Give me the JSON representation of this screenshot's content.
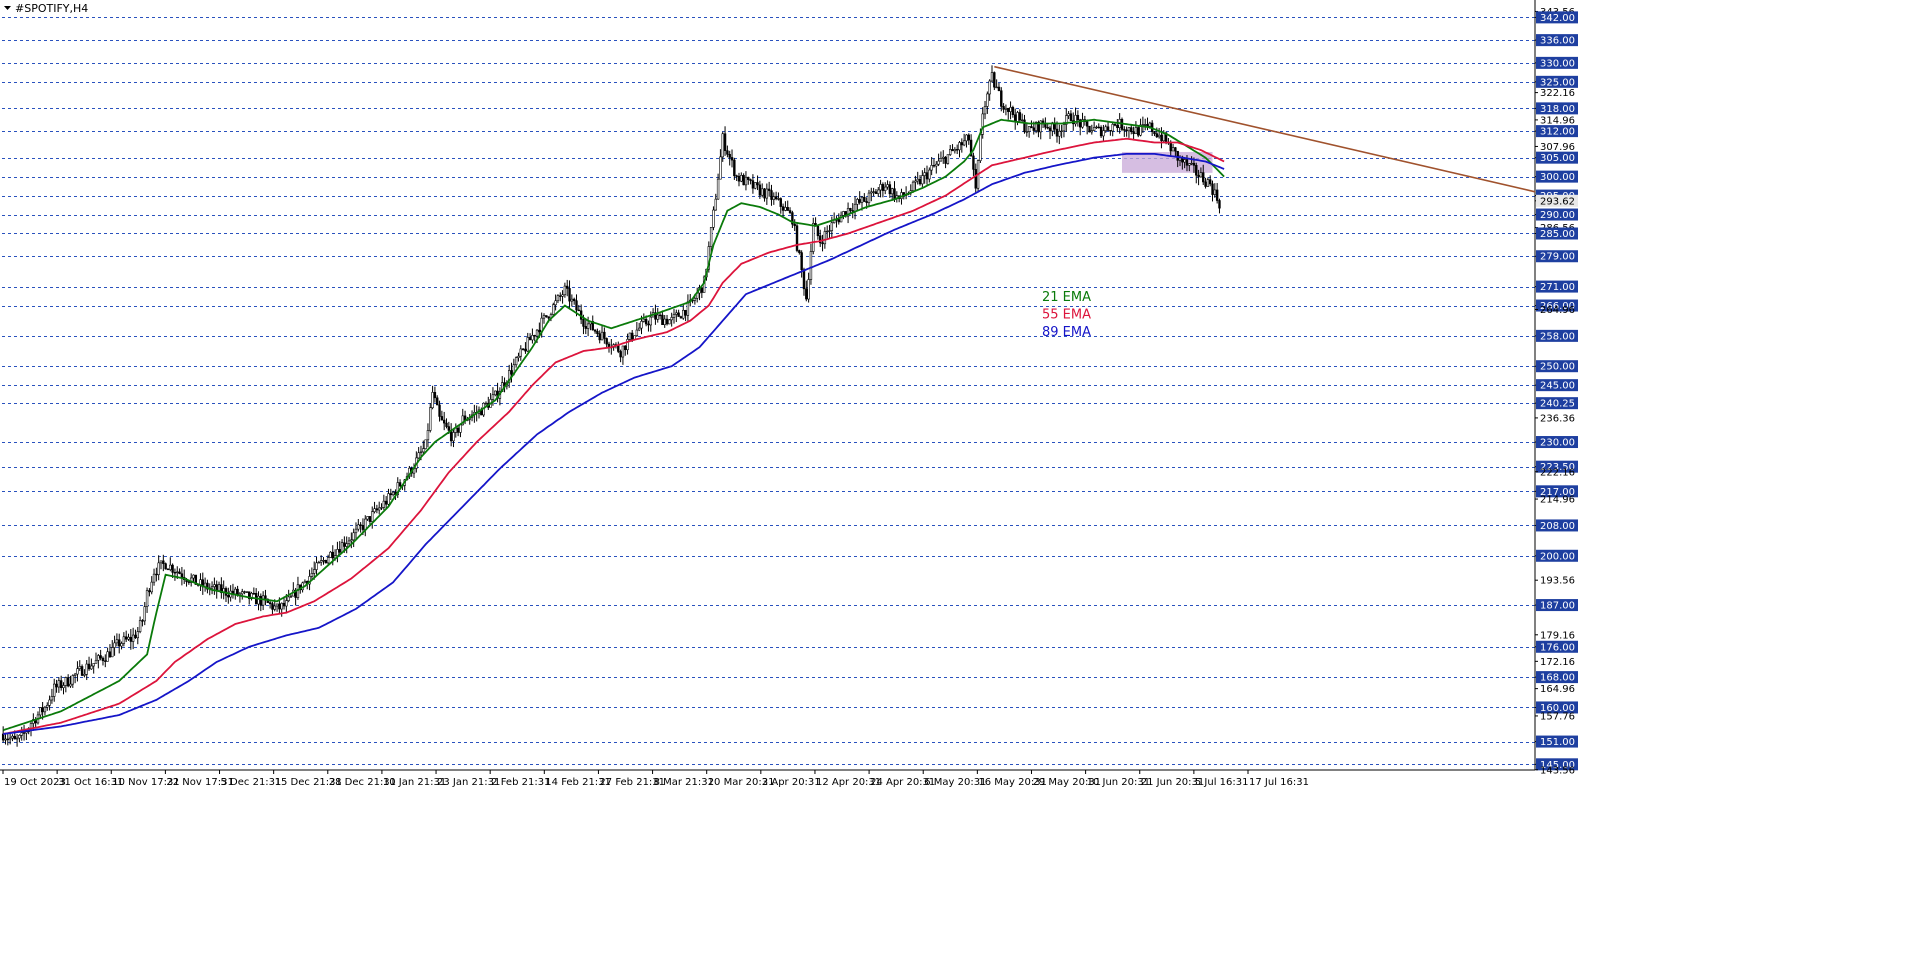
{
  "chart_data": {
    "type": "candlestick",
    "symbol_label": "#SPOTIFY,H4",
    "y_range": [
      143.5,
      345.0
    ],
    "y_ticks": [
      "343.56",
      "342.00",
      "336.00",
      "330.00",
      "325.00",
      "322.16",
      "318.00",
      "314.96",
      "312.00",
      "307.96",
      "305.00",
      "300.00",
      "295.00",
      "293.62",
      "290.00",
      "286.56",
      "285.00",
      "279.00",
      "271.00",
      "266.00",
      "264.96",
      "258.00",
      "250.00",
      "245.00",
      "240.25",
      "236.36",
      "230.00",
      "223.50",
      "222.16",
      "217.00",
      "214.96",
      "208.00",
      "200.00",
      "193.56",
      "187.00",
      "179.16",
      "176.00",
      "172.16",
      "168.00",
      "164.96",
      "160.00",
      "157.76",
      "151.00",
      "145.00",
      "143.56"
    ],
    "grid_levels": [
      342,
      336,
      330,
      325,
      318,
      312,
      305,
      300,
      295,
      290,
      285,
      279,
      271,
      266,
      258,
      250,
      245,
      240.25,
      230,
      223.5,
      217,
      208,
      200,
      187,
      176,
      168,
      160,
      151,
      145
    ],
    "boxed_labels": [
      "342.00",
      "336.00",
      "330.00",
      "325.00",
      "318.00",
      "312.00",
      "305.00",
      "300.00",
      "295.00",
      "290.00",
      "285.00",
      "279.00",
      "271.00",
      "266.00",
      "258.00",
      "250.00",
      "245.00",
      "240.25",
      "230.00",
      "223.50",
      "217.00",
      "208.00",
      "200.00",
      "187.00",
      "176.00",
      "168.00",
      "160.00",
      "151.00",
      "145.00"
    ],
    "current_price": "293.62",
    "x_ticks": [
      "19 Oct 2023",
      "31 Oct 16:31",
      "10 Nov 17:31",
      "22 Nov 17:31",
      "5 Dec 21:31",
      "15 Dec 21:31",
      "28 Dec 21:31",
      "10 Jan 21:31",
      "23 Jan 21:31",
      "2 Feb 21:31",
      "14 Feb 21:31",
      "27 Feb 21:31",
      "8 Mar 21:31",
      "20 Mar 20:31",
      "2 Apr 20:31",
      "12 Apr 20:31",
      "24 Apr 20:31",
      "6 May 20:31",
      "16 May 20:31",
      "29 May 20:31",
      "10 Jun 20:31",
      "21 Jun 20:31",
      "5 Jul 16:31",
      "17 Jul 16:31"
    ],
    "price_path": [
      [
        0,
        153
      ],
      [
        5,
        151
      ],
      [
        8,
        152
      ],
      [
        12,
        156
      ],
      [
        15,
        158
      ],
      [
        18,
        160
      ],
      [
        22,
        165
      ],
      [
        28,
        167
      ],
      [
        34,
        170
      ],
      [
        40,
        172
      ],
      [
        45,
        174
      ],
      [
        50,
        177
      ],
      [
        55,
        178
      ],
      [
        58,
        180
      ],
      [
        60,
        183
      ],
      [
        62,
        190
      ],
      [
        65,
        196
      ],
      [
        70,
        198
      ],
      [
        75,
        196
      ],
      [
        80,
        194
      ],
      [
        86,
        192
      ],
      [
        92,
        191
      ],
      [
        100,
        190
      ],
      [
        106,
        189
      ],
      [
        112,
        188
      ],
      [
        118,
        186
      ],
      [
        122,
        187
      ],
      [
        128,
        192
      ],
      [
        134,
        196
      ],
      [
        140,
        200
      ],
      [
        148,
        204
      ],
      [
        152,
        206
      ],
      [
        158,
        210
      ],
      [
        166,
        215
      ],
      [
        175,
        222
      ],
      [
        182,
        229
      ],
      [
        185,
        243
      ],
      [
        188,
        236
      ],
      [
        194,
        231
      ],
      [
        198,
        236
      ],
      [
        205,
        238
      ],
      [
        212,
        242
      ],
      [
        220,
        250
      ],
      [
        228,
        258
      ],
      [
        235,
        264
      ],
      [
        242,
        270
      ],
      [
        250,
        262
      ],
      [
        258,
        258
      ],
      [
        266,
        254
      ],
      [
        272,
        259
      ],
      [
        280,
        263
      ],
      [
        288,
        262
      ],
      [
        296,
        266
      ],
      [
        302,
        272
      ],
      [
        306,
        290
      ],
      [
        310,
        310
      ],
      [
        316,
        300
      ],
      [
        324,
        297
      ],
      [
        330,
        295
      ],
      [
        336,
        292
      ],
      [
        340,
        289
      ],
      [
        344,
        275
      ],
      [
        346,
        268
      ],
      [
        349,
        287
      ],
      [
        352,
        283
      ],
      [
        358,
        288
      ],
      [
        365,
        292
      ],
      [
        372,
        294
      ],
      [
        380,
        298
      ],
      [
        386,
        294
      ],
      [
        392,
        297
      ],
      [
        400,
        302
      ],
      [
        408,
        306
      ],
      [
        416,
        310
      ],
      [
        419,
        296
      ],
      [
        422,
        317
      ],
      [
        426,
        326
      ],
      [
        430,
        320
      ],
      [
        436,
        316
      ],
      [
        442,
        312
      ],
      [
        448,
        314
      ],
      [
        454,
        312
      ],
      [
        460,
        316
      ],
      [
        466,
        313
      ],
      [
        472,
        312
      ],
      [
        480,
        314
      ],
      [
        488,
        312
      ],
      [
        494,
        313
      ],
      [
        500,
        310
      ],
      [
        506,
        305
      ],
      [
        512,
        302
      ],
      [
        516,
        300
      ],
      [
        520,
        298
      ],
      [
        524,
        293
      ]
    ],
    "candle_range_note": "",
    "ema": [
      {
        "name": "21 EMA",
        "color": "#0a7a0a",
        "points": [
          [
            0,
            154
          ],
          [
            25,
            159
          ],
          [
            50,
            167
          ],
          [
            62,
            174
          ],
          [
            66,
            185
          ],
          [
            70,
            195
          ],
          [
            78,
            194
          ],
          [
            90,
            191
          ],
          [
            106,
            189
          ],
          [
            118,
            188
          ],
          [
            130,
            192
          ],
          [
            150,
            203
          ],
          [
            166,
            213
          ],
          [
            180,
            226
          ],
          [
            186,
            230
          ],
          [
            200,
            236
          ],
          [
            212,
            241
          ],
          [
            228,
            255
          ],
          [
            235,
            262
          ],
          [
            242,
            266
          ],
          [
            252,
            262
          ],
          [
            262,
            260
          ],
          [
            272,
            262
          ],
          [
            282,
            264
          ],
          [
            296,
            267
          ],
          [
            302,
            272
          ],
          [
            306,
            282
          ],
          [
            312,
            291
          ],
          [
            318,
            293
          ],
          [
            326,
            292
          ],
          [
            334,
            290
          ],
          [
            340,
            288
          ],
          [
            350,
            287
          ],
          [
            360,
            289
          ],
          [
            372,
            292
          ],
          [
            384,
            294
          ],
          [
            396,
            297
          ],
          [
            406,
            300
          ],
          [
            414,
            304
          ],
          [
            418,
            307
          ],
          [
            422,
            313
          ],
          [
            430,
            315
          ],
          [
            442,
            314
          ],
          [
            456,
            314
          ],
          [
            470,
            315
          ],
          [
            482,
            314
          ],
          [
            494,
            313
          ],
          [
            502,
            311
          ],
          [
            510,
            308
          ],
          [
            518,
            305
          ],
          [
            526,
            300
          ]
        ]
      },
      {
        "name": "55 EMA",
        "color": "#dc143c",
        "points": [
          [
            0,
            153
          ],
          [
            25,
            156
          ],
          [
            50,
            161
          ],
          [
            66,
            167
          ],
          [
            74,
            172
          ],
          [
            88,
            178
          ],
          [
            100,
            182
          ],
          [
            112,
            184
          ],
          [
            122,
            185
          ],
          [
            134,
            188
          ],
          [
            150,
            194
          ],
          [
            166,
            202
          ],
          [
            180,
            212
          ],
          [
            192,
            222
          ],
          [
            204,
            230
          ],
          [
            218,
            238
          ],
          [
            228,
            245
          ],
          [
            238,
            251
          ],
          [
            250,
            254
          ],
          [
            262,
            255
          ],
          [
            272,
            257
          ],
          [
            286,
            259
          ],
          [
            296,
            262
          ],
          [
            304,
            266
          ],
          [
            310,
            272
          ],
          [
            318,
            277
          ],
          [
            330,
            280
          ],
          [
            342,
            282
          ],
          [
            352,
            283
          ],
          [
            364,
            285
          ],
          [
            378,
            288
          ],
          [
            392,
            291
          ],
          [
            406,
            295
          ],
          [
            416,
            299
          ],
          [
            426,
            303
          ],
          [
            440,
            305
          ],
          [
            454,
            307
          ],
          [
            470,
            309
          ],
          [
            484,
            310
          ],
          [
            496,
            309
          ],
          [
            506,
            309
          ],
          [
            516,
            307
          ],
          [
            526,
            304
          ]
        ]
      },
      {
        "name": "89 EMA",
        "color": "#1515c8",
        "points": [
          [
            0,
            153
          ],
          [
            25,
            155
          ],
          [
            50,
            158
          ],
          [
            66,
            162
          ],
          [
            80,
            167
          ],
          [
            92,
            172
          ],
          [
            106,
            176
          ],
          [
            122,
            179
          ],
          [
            136,
            181
          ],
          [
            152,
            186
          ],
          [
            168,
            193
          ],
          [
            182,
            203
          ],
          [
            198,
            213
          ],
          [
            214,
            223
          ],
          [
            230,
            232
          ],
          [
            244,
            238
          ],
          [
            258,
            243
          ],
          [
            272,
            247
          ],
          [
            288,
            250
          ],
          [
            300,
            255
          ],
          [
            310,
            262
          ],
          [
            320,
            269
          ],
          [
            332,
            272
          ],
          [
            344,
            275
          ],
          [
            356,
            278
          ],
          [
            370,
            282
          ],
          [
            384,
            286
          ],
          [
            400,
            290
          ],
          [
            414,
            294
          ],
          [
            426,
            298
          ],
          [
            440,
            301
          ],
          [
            454,
            303
          ],
          [
            470,
            305
          ],
          [
            484,
            306
          ],
          [
            496,
            306
          ],
          [
            508,
            305
          ],
          [
            518,
            304
          ],
          [
            526,
            302
          ]
        ]
      }
    ],
    "trendline": {
      "color": "#a0522d",
      "from": [
        427,
        329
      ],
      "to": [
        660,
        296
      ]
    },
    "highlight_zone": {
      "color": "#c8a8d8",
      "x_range": [
        482,
        521
      ],
      "y_range": [
        301,
        306.5
      ]
    }
  }
}
